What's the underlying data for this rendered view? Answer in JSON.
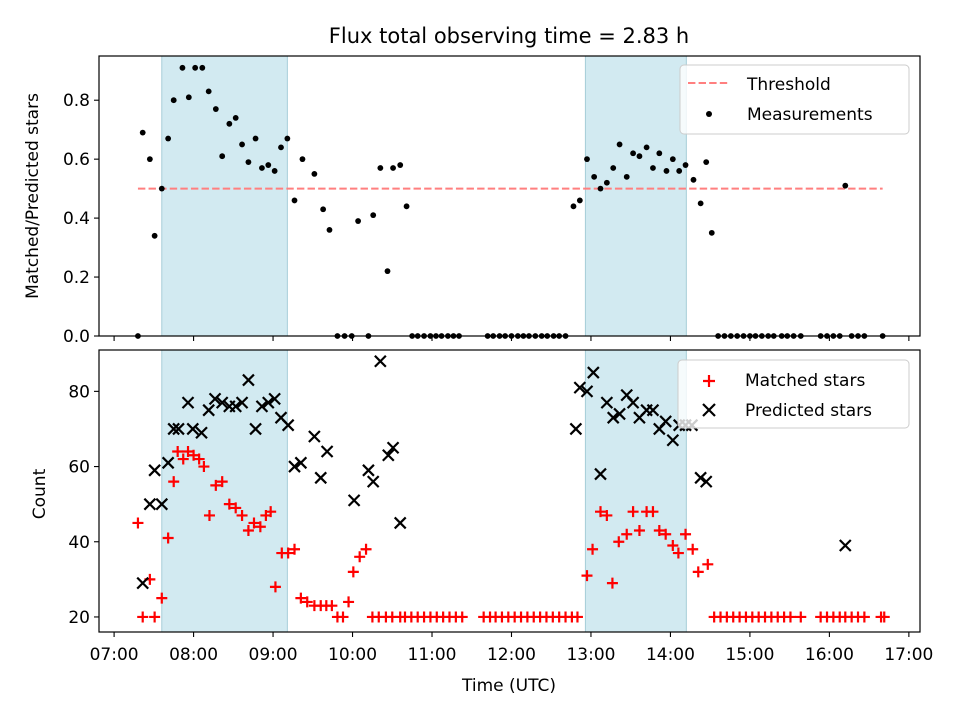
{
  "figure": {
    "title": "Flux total observing time = 2.83 h",
    "xlabel": "Time (UTC)",
    "xticks": [
      7,
      8,
      9,
      10,
      11,
      12,
      13,
      14,
      15,
      16,
      17
    ],
    "xtick_labels": [
      "07:00",
      "08:00",
      "09:00",
      "10:00",
      "11:00",
      "12:00",
      "13:00",
      "14:00",
      "15:00",
      "16:00",
      "17:00"
    ],
    "xlim": [
      6.81,
      17.14
    ],
    "shaded_intervals": [
      [
        7.6,
        9.18
      ],
      [
        12.93,
        14.2
      ]
    ],
    "shade_color": "#add8e6"
  },
  "chart_data": [
    {
      "type": "scatter",
      "name": "top-panel",
      "ylabel": "Matched/Predicted stars",
      "ylim": [
        0,
        0.95
      ],
      "yticks": [
        0.0,
        0.2,
        0.4,
        0.6,
        0.8
      ],
      "ytick_labels": [
        "0.0",
        "0.2",
        "0.4",
        "0.6",
        "0.8"
      ],
      "legend": {
        "placement": "upper right",
        "entries": [
          "Threshold",
          "Measurements"
        ]
      },
      "threshold": {
        "name": "Threshold",
        "y": 0.5,
        "x_range": [
          7.3,
          16.67
        ],
        "color": "#ff7f7f",
        "style": "dashed"
      },
      "series": [
        {
          "name": "Measurements",
          "color": "#000000",
          "marker": "dot",
          "x": [
            7.3,
            7.36,
            7.45,
            7.51,
            7.6,
            7.68,
            7.75,
            7.86,
            7.94,
            8.02,
            8.11,
            8.19,
            8.28,
            8.36,
            8.45,
            8.53,
            8.61,
            8.69,
            8.78,
            8.86,
            8.94,
            9.02,
            9.1,
            9.18,
            9.27,
            9.37,
            9.52,
            9.63,
            9.71,
            9.81,
            9.9,
            9.99,
            10.07,
            10.2,
            10.26,
            10.35,
            10.44,
            10.51,
            10.6,
            10.68,
            10.75,
            10.82,
            10.9,
            10.98,
            11.05,
            11.12,
            11.2,
            11.27,
            11.34,
            11.7,
            11.77,
            11.85,
            11.92,
            12.0,
            12.08,
            12.15,
            12.22,
            12.3,
            12.38,
            12.45,
            12.53,
            12.6,
            12.68,
            12.78,
            12.86,
            12.95,
            13.04,
            13.12,
            13.2,
            13.28,
            13.36,
            13.45,
            13.53,
            13.61,
            13.7,
            13.78,
            13.86,
            13.95,
            14.03,
            14.11,
            14.19,
            14.29,
            14.38,
            14.45,
            14.52,
            14.6,
            14.68,
            14.76,
            14.84,
            14.92,
            15.0,
            15.07,
            15.15,
            15.23,
            15.3,
            15.4,
            15.47,
            15.55,
            15.64,
            15.89,
            15.97,
            16.05,
            16.13,
            16.2,
            16.28,
            16.36,
            16.44,
            16.67
          ],
          "y": [
            0.0,
            0.69,
            0.6,
            0.34,
            0.5,
            0.67,
            0.8,
            0.91,
            0.81,
            0.91,
            0.91,
            0.83,
            0.77,
            0.61,
            0.72,
            0.74,
            0.65,
            0.59,
            0.67,
            0.57,
            0.58,
            0.56,
            0.64,
            0.67,
            0.46,
            0.6,
            0.55,
            0.43,
            0.36,
            0.0,
            0.0,
            0.0,
            0.39,
            0.0,
            0.41,
            0.57,
            0.22,
            0.57,
            0.58,
            0.44,
            0.0,
            0.0,
            0.0,
            0.0,
            0.0,
            0.0,
            0.0,
            0.0,
            0.0,
            0.0,
            0.0,
            0.0,
            0.0,
            0.0,
            0.0,
            0.0,
            0.0,
            0.0,
            0.0,
            0.0,
            0.0,
            0.0,
            0.0,
            0.44,
            0.46,
            0.6,
            0.54,
            0.5,
            0.52,
            0.57,
            0.65,
            0.54,
            0.62,
            0.61,
            0.64,
            0.57,
            0.62,
            0.56,
            0.6,
            0.56,
            0.58,
            0.53,
            0.45,
            0.59,
            0.35,
            0.0,
            0.0,
            0.0,
            0.0,
            0.0,
            0.0,
            0.0,
            0.0,
            0.0,
            0.0,
            0.0,
            0.0,
            0.0,
            0.0,
            0.0,
            0.0,
            0.0,
            0.0,
            0.51,
            0.0,
            0.0,
            0.0,
            0.0
          ]
        }
      ]
    },
    {
      "type": "scatter",
      "name": "bottom-panel",
      "ylabel": "Count",
      "ylim": [
        16,
        91
      ],
      "yticks": [
        20,
        40,
        60,
        80
      ],
      "ytick_labels": [
        "20",
        "40",
        "60",
        "80"
      ],
      "legend": {
        "placement": "upper right",
        "entries": [
          "Matched stars",
          "Predicted stars"
        ]
      },
      "series": [
        {
          "name": "Matched stars",
          "color": "#ff0000",
          "marker": "plus",
          "x": [
            7.3,
            7.36,
            7.45,
            7.51,
            7.6,
            7.68,
            7.75,
            7.8,
            7.87,
            7.93,
            8.0,
            8.07,
            8.13,
            8.2,
            8.28,
            8.36,
            8.45,
            8.53,
            8.61,
            8.69,
            8.76,
            8.84,
            8.91,
            8.97,
            9.03,
            9.11,
            9.19,
            9.27,
            9.35,
            9.43,
            9.52,
            9.6,
            9.67,
            9.74,
            9.81,
            9.88,
            9.95,
            10.01,
            10.09,
            10.17,
            10.25,
            10.33,
            10.42,
            10.5,
            10.6,
            10.66,
            10.74,
            10.82,
            10.9,
            10.98,
            11.06,
            11.14,
            11.22,
            11.3,
            11.38,
            11.65,
            11.73,
            11.8,
            11.88,
            11.96,
            12.04,
            12.12,
            12.2,
            12.28,
            12.36,
            12.44,
            12.52,
            12.6,
            12.68,
            12.76,
            12.83,
            12.95,
            13.02,
            13.12,
            13.2,
            13.27,
            13.35,
            13.45,
            13.53,
            13.61,
            13.7,
            13.78,
            13.86,
            13.94,
            14.03,
            14.1,
            14.19,
            14.28,
            14.35,
            14.47,
            14.55,
            14.63,
            14.71,
            14.79,
            14.87,
            14.95,
            15.03,
            15.11,
            15.19,
            15.27,
            15.35,
            15.43,
            15.51,
            15.64,
            15.89,
            15.97,
            16.05,
            16.13,
            16.2,
            16.28,
            16.36,
            16.44,
            16.65,
            16.69
          ],
          "y": [
            45,
            20,
            30,
            20,
            25,
            41,
            56,
            64,
            62,
            64,
            63,
            62,
            60,
            47,
            55,
            56,
            50,
            49,
            47,
            43,
            45,
            44,
            47,
            48,
            28,
            37,
            37,
            38,
            25,
            24,
            23,
            23,
            23,
            23,
            20,
            20,
            24,
            32,
            36,
            38,
            20,
            20,
            20,
            20,
            20,
            20,
            20,
            20,
            20,
            20,
            20,
            20,
            20,
            20,
            20,
            20,
            20,
            20,
            20,
            20,
            20,
            20,
            20,
            20,
            20,
            20,
            20,
            20,
            20,
            20,
            20,
            31,
            38,
            48,
            47,
            29,
            40,
            42,
            48,
            43,
            48,
            48,
            43,
            42,
            39,
            37,
            42,
            38,
            32,
            34,
            20,
            20,
            20,
            20,
            20,
            20,
            20,
            20,
            20,
            20,
            20,
            20,
            20,
            20,
            20,
            20,
            20,
            20,
            20,
            20,
            20,
            20,
            20,
            20
          ]
        },
        {
          "name": "Predicted stars",
          "color": "#000000",
          "marker": "x",
          "x": [
            7.36,
            7.45,
            7.51,
            7.6,
            7.68,
            7.75,
            7.81,
            7.93,
            7.99,
            8.1,
            8.19,
            8.27,
            8.36,
            8.45,
            8.53,
            8.61,
            8.69,
            8.78,
            8.86,
            8.94,
            9.02,
            9.1,
            9.19,
            9.27,
            9.35,
            9.52,
            9.6,
            9.68,
            10.02,
            10.2,
            10.26,
            10.35,
            10.45,
            10.51,
            10.6,
            12.81,
            12.86,
            12.95,
            13.03,
            13.12,
            13.2,
            13.28,
            13.36,
            13.45,
            13.53,
            13.61,
            13.7,
            13.78,
            13.86,
            13.94,
            14.03,
            14.11,
            14.19,
            14.27,
            14.38,
            14.45,
            16.2
          ],
          "y": [
            29,
            50,
            59,
            50,
            61,
            70,
            70,
            77,
            70,
            69,
            75,
            78,
            77,
            76,
            76,
            77,
            83,
            70,
            76,
            77,
            78,
            73,
            71,
            60,
            61,
            68,
            57,
            64,
            51,
            59,
            56,
            88,
            63,
            65,
            45,
            70,
            81,
            80,
            85,
            58,
            77,
            73,
            74,
            79,
            77,
            73,
            75,
            75,
            70,
            72,
            67,
            71,
            71,
            71,
            57,
            56,
            39
          ]
        }
      ]
    }
  ]
}
